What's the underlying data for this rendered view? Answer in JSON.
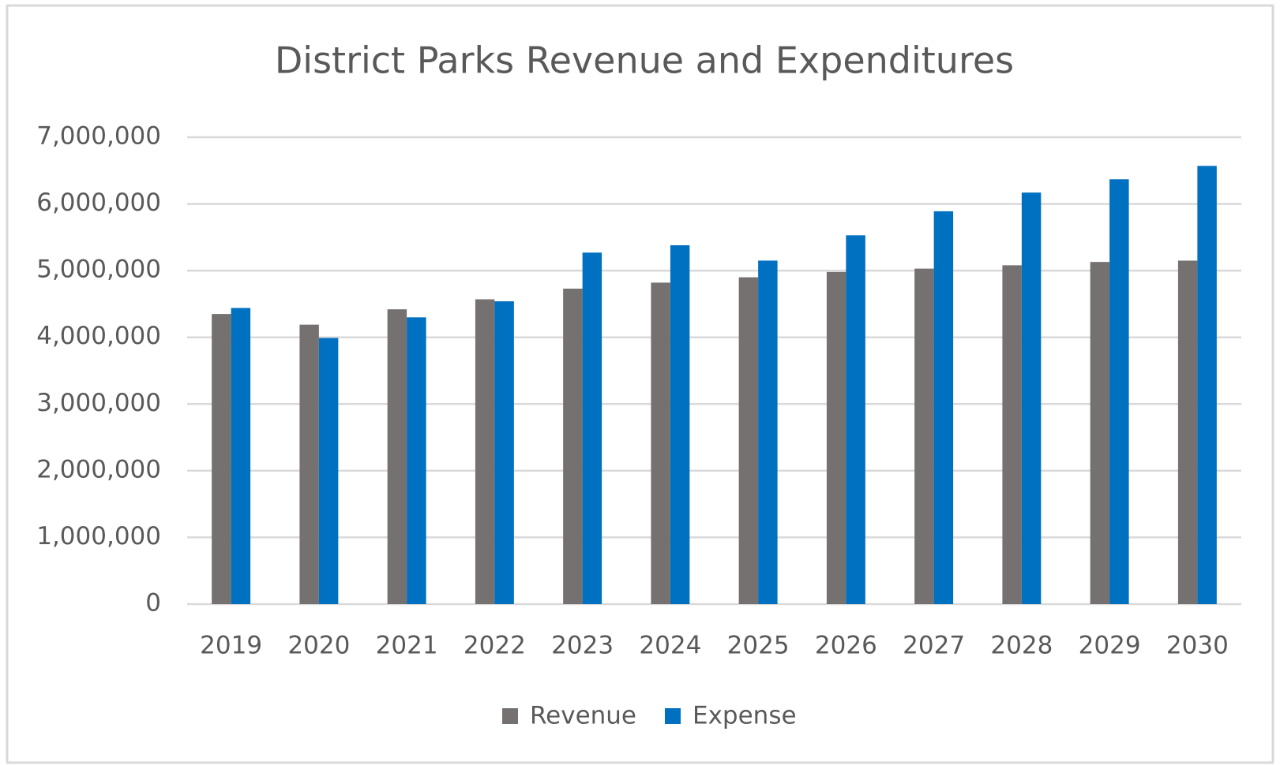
{
  "chart_data": {
    "type": "bar",
    "title": "District Parks Revenue and Expenditures",
    "categories": [
      "2019",
      "2020",
      "2021",
      "2022",
      "2023",
      "2024",
      "2025",
      "2026",
      "2027",
      "2028",
      "2029",
      "2030"
    ],
    "series": [
      {
        "name": "Revenue",
        "color": "#767171",
        "values": [
          4350000,
          4190000,
          4420000,
          4570000,
          4730000,
          4820000,
          4900000,
          4980000,
          5030000,
          5080000,
          5130000,
          5150000
        ]
      },
      {
        "name": "Expense",
        "color": "#0070c0",
        "values": [
          4440000,
          3990000,
          4300000,
          4540000,
          5270000,
          5380000,
          5150000,
          5530000,
          5890000,
          6170000,
          6370000,
          6570000
        ]
      }
    ],
    "ylim": [
      0,
      7000000
    ],
    "yticks": [
      0,
      {
        "value": 1000000,
        "label": "1,000,000"
      },
      {
        "value": 2000000,
        "label": "2,000,000"
      },
      {
        "value": 3000000,
        "label": "3,000,000"
      },
      {
        "value": 4000000,
        "label": "4,000,000"
      },
      {
        "value": 5000000,
        "label": "5,000,000"
      },
      {
        "value": 6000000,
        "label": "6,000,000"
      },
      {
        "value": 7000000,
        "label": "7,000,000"
      }
    ],
    "grid": true,
    "legend": "bottom"
  }
}
